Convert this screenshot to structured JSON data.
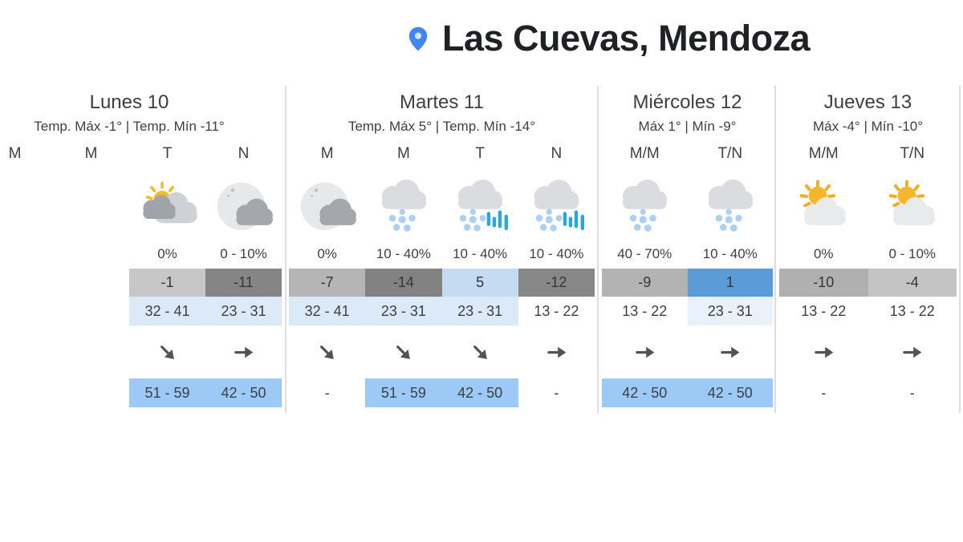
{
  "header": {
    "location": "Las Cuevas, Mendoza",
    "pin_icon": "location-pin",
    "pin_color": "#4285f4"
  },
  "colors": {
    "divider": "#dcdee1",
    "wind_cell_blue": "#9dc9f6",
    "range_cell_blue": "#dbe9f8",
    "temp_blue_mid": "#5b9cd8",
    "snow_flake_blue": "#abd0f2",
    "rain_bar_blue": "#2ba5df"
  },
  "days": [
    {
      "name": "Lunes 10",
      "summary": "Temp. Máx -1° | Temp. Mín -11°",
      "cols": [
        {
          "label": "M"
        },
        {
          "label": "M"
        },
        {
          "label": "T",
          "icon": "mostly-cloudy-day",
          "precip": "0%",
          "temp": "-1",
          "temp_bg": "#c7c7c7",
          "range": "32 - 41",
          "range_bg": "#dbe9f8",
          "arrow": "arrow-se",
          "wind": "51 - 59",
          "wind_bg": "#9dc9f6"
        },
        {
          "label": "N",
          "icon": "cloudy-night",
          "precip": "0 - 10%",
          "temp": "-11",
          "temp_bg": "#858585",
          "range": "23 - 31",
          "range_bg": "#dbe9f8",
          "arrow": "arrow-e",
          "wind": "42 - 50",
          "wind_bg": "#9dc9f6"
        }
      ]
    },
    {
      "name": "Martes 11",
      "summary": "Temp. Máx 5° | Temp. Mín -14°",
      "cols": [
        {
          "label": "M",
          "icon": "cloudy-night",
          "precip": "0%",
          "temp": "-7",
          "temp_bg": "#b5b5b5",
          "range": "32 - 41",
          "range_bg": "#dbe9f8",
          "arrow": "arrow-se",
          "wind": "-"
        },
        {
          "label": "M",
          "icon": "snow",
          "precip": "10 - 40%",
          "temp": "-14",
          "temp_bg": "#828282",
          "range": "23 - 31",
          "range_bg": "#dbe9f8",
          "arrow": "arrow-se",
          "wind": "51 - 59",
          "wind_bg": "#9dc9f6"
        },
        {
          "label": "T",
          "icon": "sleet",
          "precip": "10 - 40%",
          "temp": "5",
          "temp_bg": "#c5dbf1",
          "range": "23 - 31",
          "range_bg": "#dbe9f8",
          "arrow": "arrow-se",
          "wind": "42 - 50",
          "wind_bg": "#9dc9f6"
        },
        {
          "label": "N",
          "icon": "sleet",
          "precip": "10 - 40%",
          "temp": "-12",
          "temp_bg": "#878787",
          "range": "13 - 22",
          "arrow": "arrow-e",
          "wind": "-"
        }
      ]
    },
    {
      "name": "Miércoles 12",
      "summary": "Máx 1° | Mín -9°",
      "cols": [
        {
          "label": "M/M",
          "icon": "snow",
          "precip": "40 - 70%",
          "temp": "-9",
          "temp_bg": "#b3b3b3",
          "range": "13 - 22",
          "arrow": "arrow-e",
          "wind": "42 - 50",
          "wind_bg": "#9dc9f6"
        },
        {
          "label": "T/N",
          "icon": "snow",
          "precip": "10 - 40%",
          "temp": "1",
          "temp_bg": "#5b9cd8",
          "range": "23 - 31",
          "range_bg": "#e9f1fb",
          "arrow": "arrow-e",
          "wind": "42 - 50",
          "wind_bg": "#9dc9f6"
        }
      ]
    },
    {
      "name": "Jueves 13",
      "summary": "Máx -4° | Mín -10°",
      "cols": [
        {
          "label": "M/M",
          "icon": "partly-sunny",
          "precip": "0%",
          "temp": "-10",
          "temp_bg": "#b0b0b0",
          "range": "13 - 22",
          "arrow": "arrow-e",
          "wind": "-"
        },
        {
          "label": "T/N",
          "icon": "partly-sunny",
          "precip": "0 - 10%",
          "temp": "-4",
          "temp_bg": "#c4c4c4",
          "range": "13 - 22",
          "arrow": "arrow-e",
          "wind": "-"
        }
      ]
    }
  ]
}
